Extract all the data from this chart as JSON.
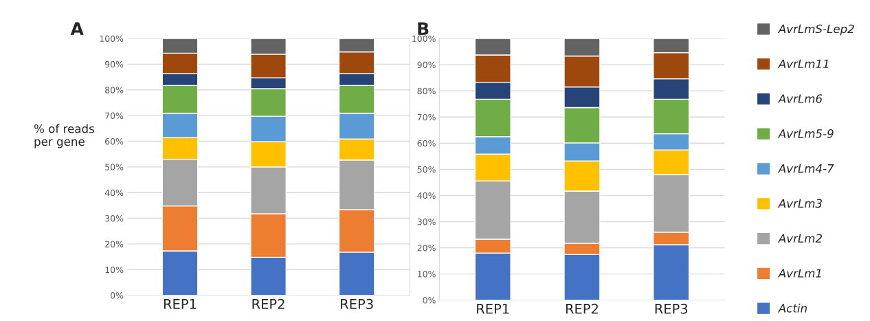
{
  "chart_data": [
    {
      "type": "bar",
      "title": "A",
      "ylabel": "% of reads\nper gene",
      "categories": [
        "REP1",
        "REP2",
        "REP3"
      ],
      "stacked": true,
      "grid": "y",
      "legend": false,
      "ylim": [
        0,
        100
      ],
      "yticks": [
        {
          "value": 0,
          "label": "0%"
        },
        {
          "value": 10,
          "label": "10%"
        },
        {
          "value": 20,
          "label": "20%"
        },
        {
          "value": 30,
          "label": "30%"
        },
        {
          "value": 40,
          "label": "40%"
        },
        {
          "value": 50,
          "label": "50%"
        },
        {
          "value": 60,
          "label": "60%"
        },
        {
          "value": 70,
          "label": "70%"
        },
        {
          "value": 80,
          "label": "80%"
        },
        {
          "value": 90,
          "label": "90%"
        },
        {
          "value": 100,
          "label": "100%"
        }
      ],
      "series": [
        {
          "color": "#4472c4",
          "values": [
            17.3,
            14.8,
            16.8
          ]
        },
        {
          "color": "#ed7d31",
          "values": [
            17.5,
            17.0,
            16.6
          ]
        },
        {
          "color": "#a5a5a5",
          "values": [
            18.2,
            18.2,
            19.3
          ]
        },
        {
          "color": "#ffc000",
          "values": [
            8.4,
            9.8,
            8.2
          ]
        },
        {
          "color": "#5b9bd5",
          "values": [
            9.5,
            9.9,
            10.0
          ]
        },
        {
          "color": "#70ad47",
          "values": [
            10.8,
            10.8,
            10.8
          ]
        },
        {
          "color": "#264478",
          "values": [
            4.6,
            4.2,
            4.6
          ]
        },
        {
          "color": "#9e480e",
          "values": [
            8.0,
            9.2,
            8.5
          ]
        },
        {
          "color": "#636363",
          "values": [
            5.7,
            6.1,
            5.2
          ]
        }
      ]
    },
    {
      "type": "bar",
      "title": "B",
      "categories": [
        "REP1",
        "REP2",
        "REP3"
      ],
      "stacked": true,
      "grid": "y",
      "legend": "right",
      "ylim": [
        0,
        100
      ],
      "yticks": [
        {
          "value": 0,
          "label": "0%"
        },
        {
          "value": 10,
          "label": "10%"
        },
        {
          "value": 20,
          "label": "20%"
        },
        {
          "value": 30,
          "label": "30%"
        },
        {
          "value": 40,
          "label": "40%"
        },
        {
          "value": 50,
          "label": "50%"
        },
        {
          "value": 60,
          "label": "60%"
        },
        {
          "value": 70,
          "label": "70%"
        },
        {
          "value": 80,
          "label": "80%"
        },
        {
          "value": 90,
          "label": "90%"
        },
        {
          "value": 100,
          "label": "100%"
        }
      ],
      "series": [
        {
          "name": "Actin",
          "color": "#4472c4",
          "values": [
            18.0,
            17.4,
            21.2
          ]
        },
        {
          "name": "AvrLm1",
          "color": "#ed7d31",
          "values": [
            5.3,
            4.3,
            4.8
          ]
        },
        {
          "name": "AvrLm2",
          "color": "#a5a5a5",
          "values": [
            22.3,
            20.0,
            22.0
          ]
        },
        {
          "name": "AvrLm3",
          "color": "#ffc000",
          "values": [
            10.2,
            11.5,
            9.4
          ]
        },
        {
          "name": "AvrLm4-7",
          "color": "#5b9bd5",
          "values": [
            6.7,
            6.9,
            6.2
          ]
        },
        {
          "name": "AvrLm5-9",
          "color": "#70ad47",
          "values": [
            14.3,
            13.5,
            13.2
          ]
        },
        {
          "name": "AvrLm6",
          "color": "#264478",
          "values": [
            6.5,
            7.9,
            7.8
          ]
        },
        {
          "name": "AvrLm11",
          "color": "#9e480e",
          "values": [
            10.4,
            11.8,
            10.0
          ]
        },
        {
          "name": "AvrLmS-Lep2",
          "color": "#636363",
          "values": [
            6.3,
            6.7,
            5.4
          ]
        }
      ]
    }
  ]
}
